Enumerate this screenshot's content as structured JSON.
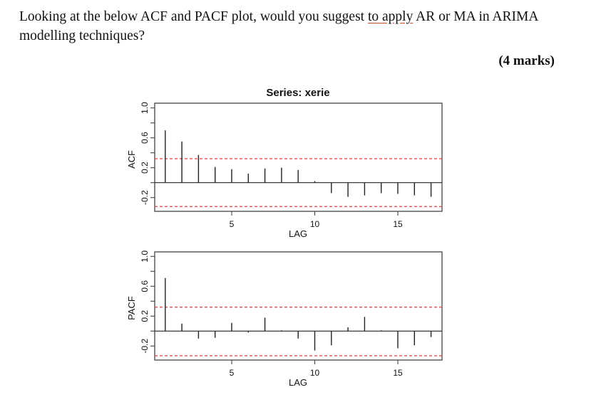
{
  "question": {
    "text_before": "Looking at the below ACF and PACF plot, would you suggest ",
    "underlined": "to apply",
    "text_after": " AR or MA in ARIMA modelling techniques?",
    "marks": "(4 marks)"
  },
  "colors": {
    "bar": "#222222",
    "frame": "#444444",
    "confidence": "#e05050",
    "spellcheck_underline": "#c0502a"
  },
  "chart_data": [
    {
      "type": "bar",
      "title": "Series:  xerie",
      "xlabel": "LAG",
      "ylabel": "ACF",
      "xticks": [
        5,
        10,
        15
      ],
      "yticks": [
        -0.2,
        0.2,
        0.6,
        1.0
      ],
      "ytick_minor": [
        0.0,
        0.4,
        0.8
      ],
      "ylim": [
        -0.4,
        1.05
      ],
      "xlim": [
        0.3,
        17.5
      ],
      "grid": false,
      "confidence_bounds": [
        0.32,
        -0.32
      ],
      "x": [
        1,
        2,
        3,
        4,
        5,
        6,
        7,
        8,
        9,
        10,
        11,
        12,
        13,
        14,
        15,
        16,
        17
      ],
      "values": [
        0.7,
        0.55,
        0.37,
        0.21,
        0.18,
        0.12,
        0.19,
        0.2,
        0.17,
        0.02,
        -0.14,
        -0.19,
        -0.17,
        -0.14,
        -0.15,
        -0.17,
        -0.19
      ]
    },
    {
      "type": "bar",
      "title": "",
      "xlabel": "LAG",
      "ylabel": "PACF",
      "xticks": [
        5,
        10,
        15
      ],
      "yticks": [
        -0.2,
        0.2,
        0.6,
        1.0
      ],
      "ytick_minor": [
        0.0,
        0.4,
        0.8
      ],
      "ylim": [
        -0.4,
        1.05
      ],
      "xlim": [
        0.3,
        17.5
      ],
      "grid": false,
      "confidence_bounds": [
        0.32,
        -0.33
      ],
      "x": [
        1,
        2,
        3,
        4,
        5,
        6,
        7,
        8,
        9,
        10,
        11,
        12,
        13,
        14,
        15,
        16,
        17
      ],
      "values": [
        0.71,
        0.1,
        -0.1,
        -0.09,
        0.11,
        -0.02,
        0.18,
        0.01,
        -0.1,
        -0.26,
        -0.19,
        0.05,
        0.19,
        0.01,
        -0.23,
        -0.19,
        -0.08
      ]
    }
  ]
}
